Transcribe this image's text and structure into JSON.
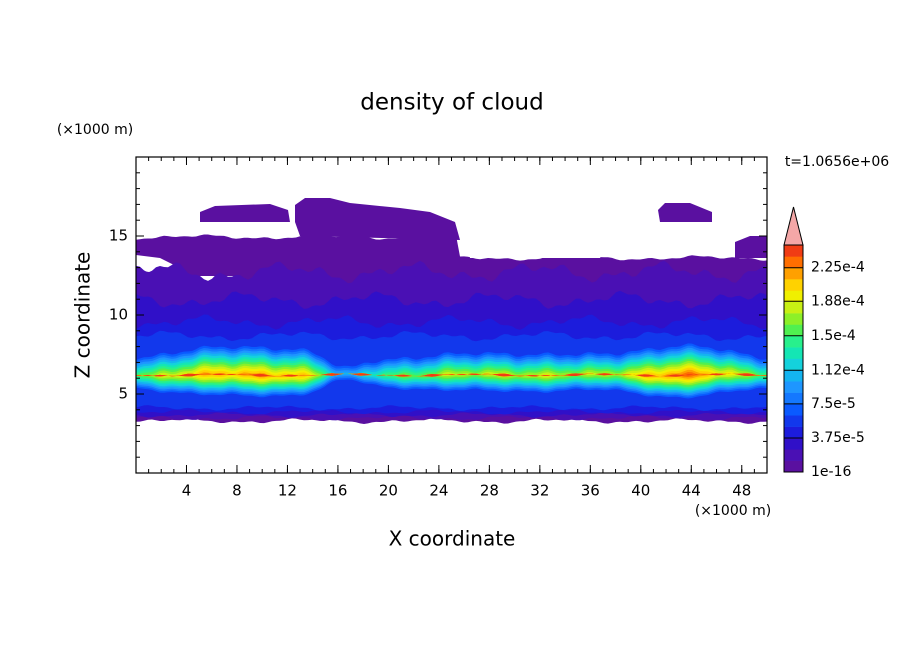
{
  "chart_data": {
    "type": "contour",
    "title": "density of cloud",
    "x_label": "X coordinate",
    "y_label": "Z coordinate",
    "x_unit": "(×1000 m)",
    "y_unit": "(×1000 m)",
    "time_label": "t=1.0656e+06",
    "xlim": [
      0,
      50
    ],
    "ylim": [
      0,
      20
    ],
    "xticks": [
      4,
      8,
      12,
      16,
      20,
      24,
      28,
      32,
      36,
      40,
      44,
      48
    ],
    "yticks": [
      5,
      10,
      15
    ],
    "colorbar": {
      "clim": [
        1e-16,
        0.00025
      ],
      "ticks": [
        {
          "value": 1e-16,
          "label": "1e-16"
        },
        {
          "value": 3.75e-05,
          "label": "3.75e-5"
        },
        {
          "value": 7.5e-05,
          "label": "7.5e-5"
        },
        {
          "value": 0.000112,
          "label": "1.12e-4"
        },
        {
          "value": 0.00015,
          "label": "1.5e-4"
        },
        {
          "value": 0.000188,
          "label": "1.88e-4"
        },
        {
          "value": 0.000225,
          "label": "2.25e-4"
        }
      ],
      "colors": [
        "#5a10a0",
        "#4a10b4",
        "#3010c8",
        "#1c1cdc",
        "#1238ec",
        "#0a5aff",
        "#1478ff",
        "#1e96ff",
        "#14b4f0",
        "#14d2dc",
        "#14e6b4",
        "#28f08c",
        "#50f050",
        "#8cf028",
        "#c8f014",
        "#f0f000",
        "#ffd200",
        "#ffa000",
        "#ff6e00",
        "#f03c14"
      ],
      "extend_color": "#f4a7a7"
    }
  }
}
